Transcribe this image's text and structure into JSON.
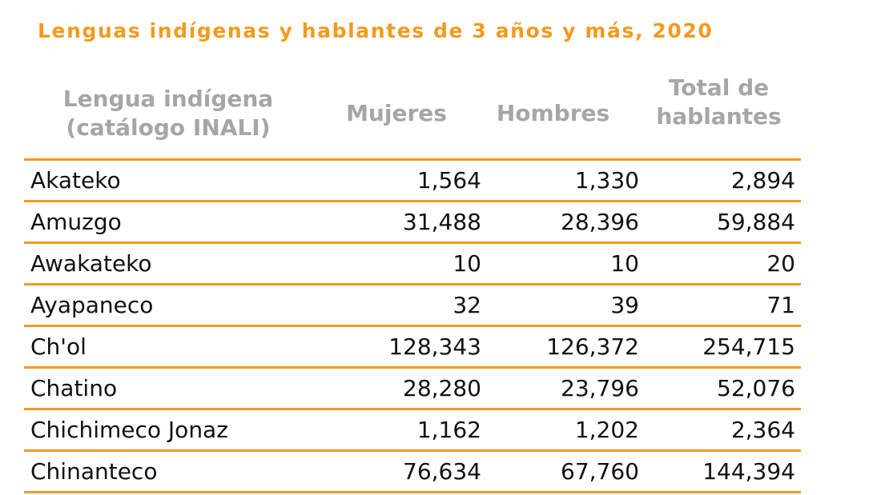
{
  "title": "Lenguas indígenas y hablantes de 3 años y más, 2020",
  "table": {
    "headers": {
      "lengua": "Lengua indígena\n(catálogo INALI)",
      "mujeres": "Mujeres",
      "hombres": "Hombres",
      "total": "Total de\nhablantes"
    },
    "rows": [
      {
        "lengua": "Akateko",
        "mujeres": "1,564",
        "hombres": "1,330",
        "total": "2,894"
      },
      {
        "lengua": "Amuzgo",
        "mujeres": "31,488",
        "hombres": "28,396",
        "total": "59,884"
      },
      {
        "lengua": "Awakateko",
        "mujeres": "10",
        "hombres": "10",
        "total": "20"
      },
      {
        "lengua": "Ayapaneco",
        "mujeres": "32",
        "hombres": "39",
        "total": "71"
      },
      {
        "lengua": "Ch'ol",
        "mujeres": "128,343",
        "hombres": "126,372",
        "total": "254,715"
      },
      {
        "lengua": "Chatino",
        "mujeres": "28,280",
        "hombres": "23,796",
        "total": "52,076"
      },
      {
        "lengua": "Chichimeco Jonaz",
        "mujeres": "1,162",
        "hombres": "1,202",
        "total": "2,364"
      },
      {
        "lengua": "Chinanteco",
        "mujeres": "76,634",
        "hombres": "67,760",
        "total": "144,394"
      }
    ]
  },
  "colors": {
    "accent": "#F39A1E",
    "header_text": "#A6A6A6",
    "body_text": "#111111"
  }
}
